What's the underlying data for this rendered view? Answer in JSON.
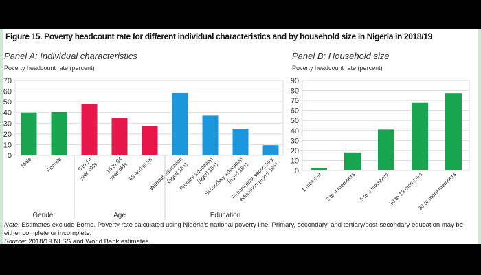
{
  "figure_title": "Figure 15. Poverty headcount rate for different individual characteristics and by household size in Nigeria in 2018/19",
  "note_label": "Note:",
  "note": " Estimates exclude Borno. Poverty rate calculated using Nigeria’s national poverty line. Primary, secondary, and tertiary/post-secondary education may be either complete or incomplete.",
  "source_label": "Source:",
  "source": " 2018/19 NLSS and World Bank estimates.",
  "chart_data": [
    {
      "type": "bar",
      "title": "Panel A: Individual characteristics",
      "ylabel": "Poverty headcount rate (percent)",
      "ylim": [
        0,
        70
      ],
      "yticks": [
        0,
        10,
        20,
        30,
        40,
        50,
        60,
        70
      ],
      "grid": true,
      "categories": [
        "Male",
        "Female",
        "0 to 14 year olds",
        "15 to 64 year olds",
        "65 and older",
        "Without education (aged 16+)",
        "Primary education (aged 16+)",
        "Secondary education (aged 16+)",
        "Tertiary/post-secondary education (aged 16+)"
      ],
      "values": [
        40,
        40.5,
        48,
        35,
        27,
        58.5,
        37,
        25,
        9.5
      ],
      "colors": [
        "#18a550",
        "#18a550",
        "#e8174a",
        "#e8174a",
        "#e8174a",
        "#1c96dc",
        "#1c96dc",
        "#1c96dc",
        "#1c96dc"
      ],
      "groups": [
        {
          "label": "Gender",
          "count": 2
        },
        {
          "label": "Age",
          "count": 3
        },
        {
          "label": "Education",
          "count": 4
        }
      ]
    },
    {
      "type": "bar",
      "title": "Panel B: Household size",
      "ylabel": "Poverty headcount rate (percent)",
      "ylim": [
        0,
        90
      ],
      "yticks": [
        0,
        10,
        20,
        30,
        40,
        50,
        60,
        70,
        80,
        90
      ],
      "grid": true,
      "categories": [
        "1 member",
        "2 to 4 members",
        "5 to 9 members",
        "10 to 19 members",
        "20 or more members"
      ],
      "values": [
        2.5,
        18,
        41,
        67.5,
        77.5
      ],
      "colors": [
        "#18a550",
        "#18a550",
        "#18a550",
        "#18a550",
        "#18a550"
      ]
    }
  ]
}
